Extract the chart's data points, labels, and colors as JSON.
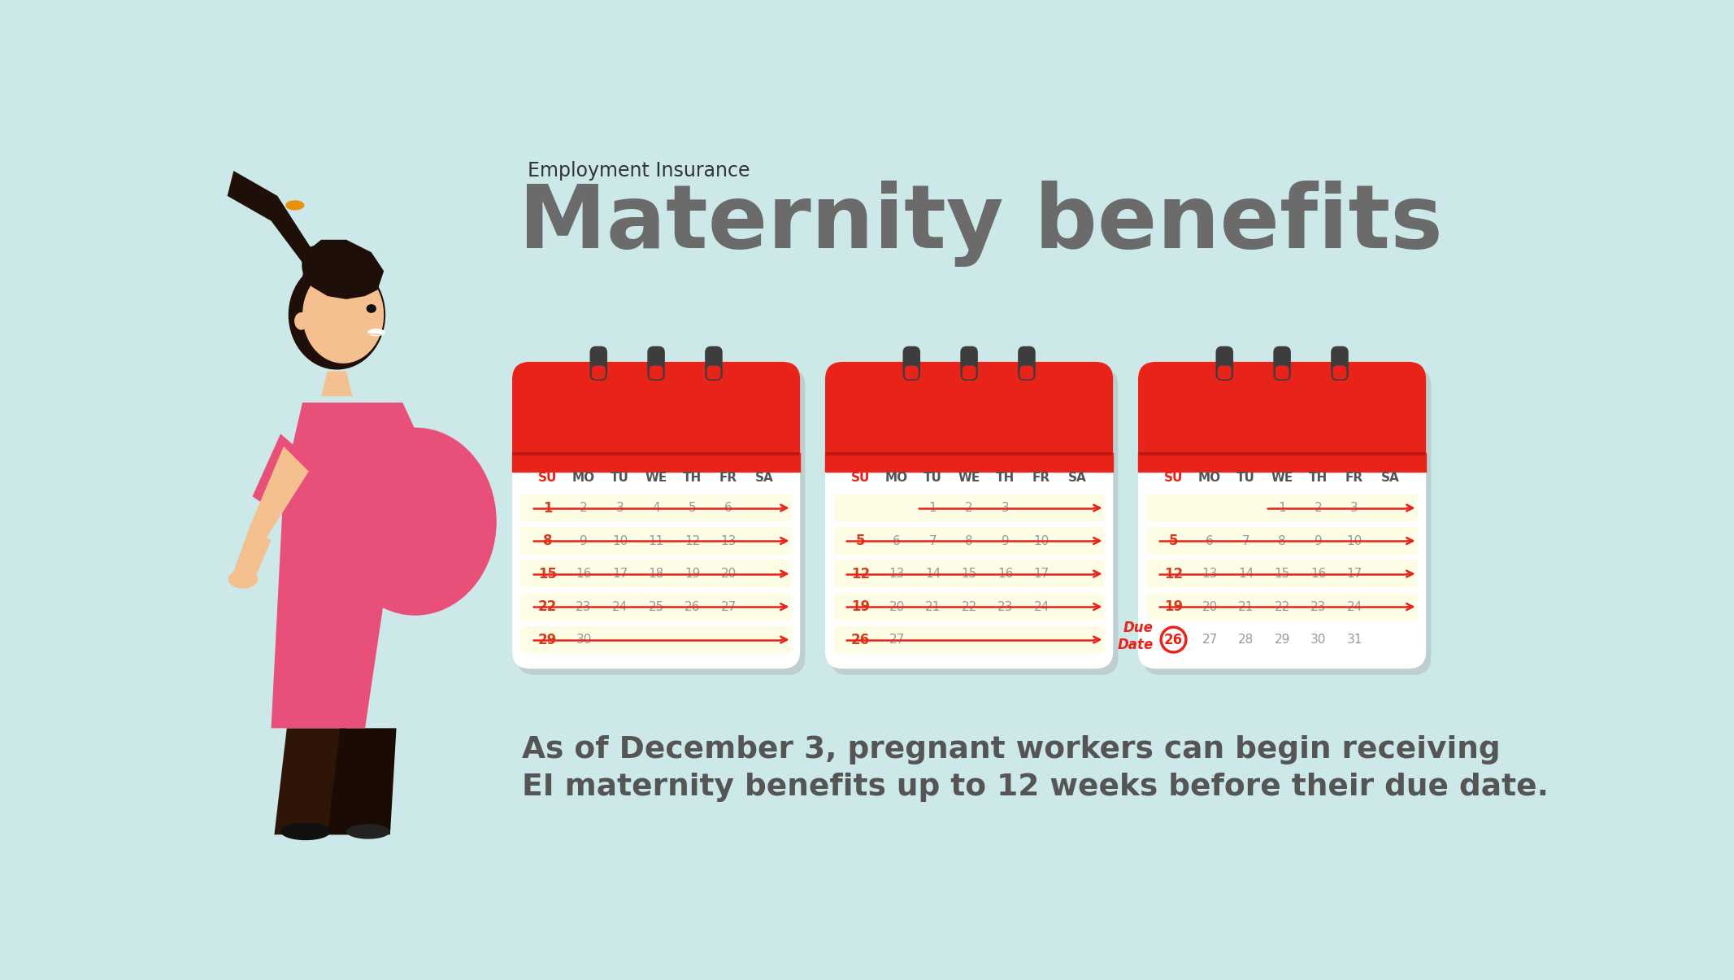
{
  "bg_color": "#cce8e8",
  "title_small": "Employment Insurance",
  "title_large": "Maternity benefits",
  "title_small_color": "#333333",
  "title_large_color": "#6b6b6b",
  "bottom_text_line1": "As of December 3, pregnant workers can begin receiving",
  "bottom_text_line2": "EI maternity benefits up to 12 weeks before their due date.",
  "bottom_text_color": "#555555",
  "cal_red": "#e8231a",
  "cal_dark_red": "#c01510",
  "cal_white": "#ffffff",
  "cal_yellow": "#fdfce4",
  "spiral_color": "#3d3d3d",
  "day_headers": [
    "SU",
    "MO",
    "TU",
    "WE",
    "TH",
    "FR",
    "SA"
  ],
  "su_color": "#e8231a",
  "day_color": "#555555",
  "num_color_sun": "#d04020",
  "num_color_other": "#999999",
  "cal1_rows": [
    [
      "1",
      "2",
      "3",
      "4",
      "5",
      "6",
      ""
    ],
    [
      "8",
      "9",
      "10",
      "11",
      "12",
      "13",
      ""
    ],
    [
      "15",
      "16",
      "17",
      "18",
      "19",
      "20",
      ""
    ],
    [
      "22",
      "23",
      "24",
      "25",
      "26",
      "27",
      ""
    ],
    [
      "29",
      "30",
      "",
      "",
      "",
      "",
      ""
    ]
  ],
  "cal1_highlight": [
    0,
    1,
    2,
    3,
    4
  ],
  "cal2_rows": [
    [
      "",
      "",
      "1",
      "2",
      "3",
      "",
      ""
    ],
    [
      "5",
      "6",
      "7",
      "8",
      "9",
      "10",
      ""
    ],
    [
      "12",
      "13",
      "14",
      "15",
      "16",
      "17",
      ""
    ],
    [
      "19",
      "20",
      "21",
      "22",
      "23",
      "24",
      ""
    ],
    [
      "26",
      "27",
      "",
      "",
      "",
      "",
      ""
    ]
  ],
  "cal2_highlight": [
    0,
    1,
    2,
    3,
    4
  ],
  "cal3_rows": [
    [
      "",
      "",
      "",
      "1",
      "2",
      "3",
      ""
    ],
    [
      "5",
      "6",
      "7",
      "8",
      "9",
      "10",
      ""
    ],
    [
      "12",
      "13",
      "14",
      "15",
      "16",
      "17",
      ""
    ],
    [
      "19",
      "20",
      "21",
      "22",
      "23",
      "24",
      ""
    ],
    [
      "26",
      "27",
      "28",
      "29",
      "30",
      "31",
      ""
    ]
  ],
  "cal3_highlight": [
    0,
    1,
    2,
    3
  ],
  "due_date_num": "26",
  "due_date_label": "Due\nDate",
  "skin_color": "#f5c090",
  "skin_shadow": "#e8a870",
  "shirt_color": "#e8507a",
  "shirt_dark": "#c83060",
  "hair_color": "#1e1008",
  "hair_tie_color": "#e89010",
  "pants_color": "#2e1508",
  "pants_shadow": "#1a0c04",
  "shoe_color": "#111111",
  "teeth_color": "#ffffff"
}
